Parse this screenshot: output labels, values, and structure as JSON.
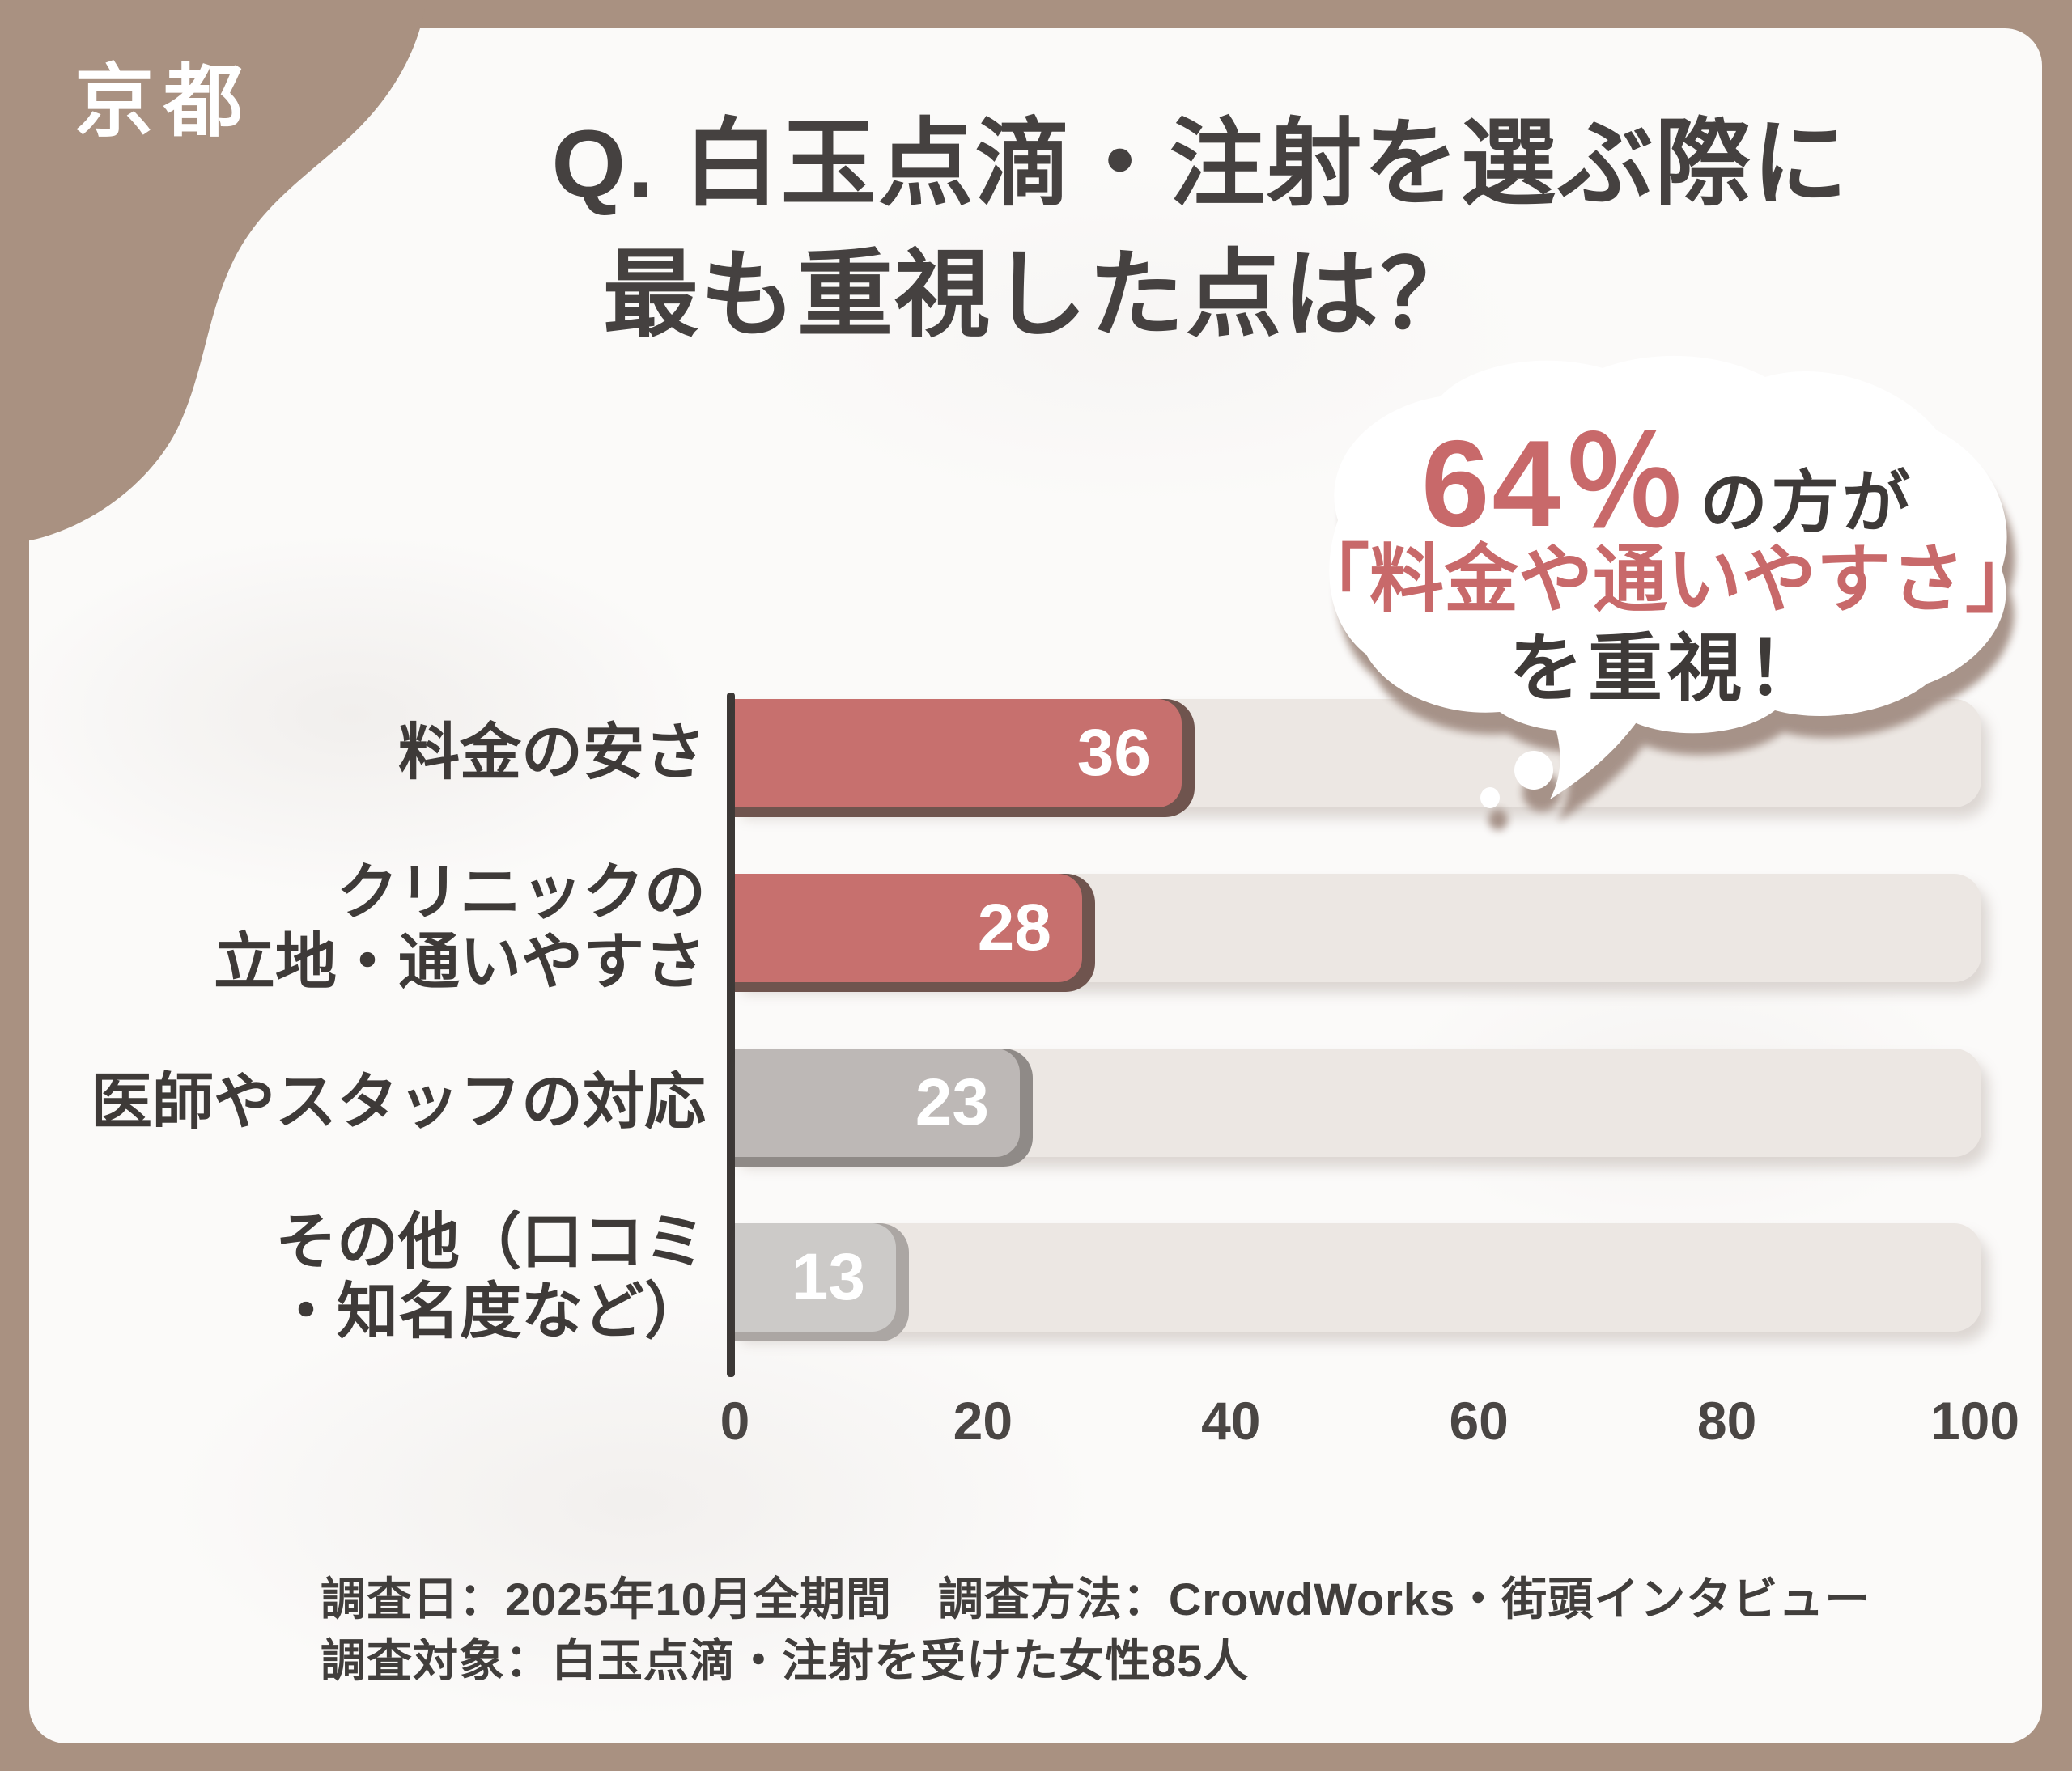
{
  "badge": {
    "label": "京都"
  },
  "title": {
    "line1": "Q. 白玉点滴・注射を選ぶ際に",
    "line2": "最も重視した点は？"
  },
  "callout": {
    "percent": "64％",
    "percent_suffix": "の方が",
    "highlight": "「料金や通いやすさ」",
    "emphasis": "を重視！"
  },
  "chart_data": {
    "type": "bar",
    "orientation": "horizontal",
    "title": "Q. 白玉点滴・注射を選ぶ際に最も重視した点は？",
    "categories": [
      "料金の安さ",
      "クリニックの立地・通いやすさ",
      "医師やスタッフの対応",
      "その他（口コミ・知名度など）"
    ],
    "label_lines": [
      [
        "料金の安さ"
      ],
      [
        "クリニックの",
        "立地・通いやすさ"
      ],
      [
        "医師やスタッフの対応"
      ],
      [
        "その他（口コミ",
        "・知名度など）"
      ]
    ],
    "values": [
      36,
      28,
      23,
      13
    ],
    "xlim": [
      0,
      100
    ],
    "x_ticks": [
      0,
      20,
      40,
      60,
      80,
      100
    ],
    "bar_colors": [
      "#c7706e",
      "#c7706e",
      "#bdb8b6",
      "#cccac8"
    ],
    "bar_shadow_colors": [
      "#6f544e",
      "#6f544e",
      "#8f8a87",
      "#aba6a3"
    ],
    "value_label_color": "#ffffff",
    "grid": false,
    "legend": false,
    "annotation": "64％の方が「料金や通いやすさ」を重視！"
  },
  "footer": {
    "line1": "調査日：2025年10月全期間　調査方法：CrowdWorks・街頭インタビュー",
    "line2": "調査対象：白玉点滴・注射を受けた女性85人"
  },
  "colors": {
    "frame": "#a99181",
    "card": "#fbfaf9",
    "accent_red": "#c7706e",
    "text_dark": "#3f3b39",
    "track": "#ece7e3",
    "axis": "#3c3836",
    "bubble_shadow": "#a38e84"
  }
}
